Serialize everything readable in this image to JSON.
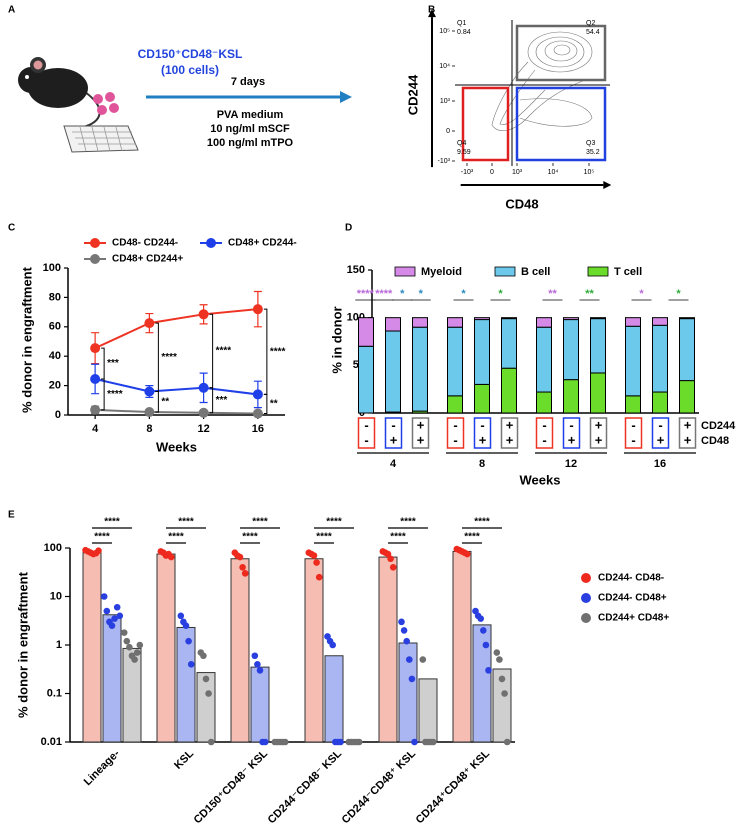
{
  "panel_labels": [
    "A",
    "B",
    "C",
    "D",
    "E"
  ],
  "schematic": {
    "cells": "CD150⁺CD48⁻KSL",
    "cell_count": "(100 cells)",
    "duration": "7 days",
    "conditions": [
      "PVA medium",
      "10 ng/ml mSCF",
      "100 ng/ml mTPO"
    ]
  },
  "chart_data": [
    {
      "type": "flow",
      "x_label": "CD48",
      "y_label": "CD244",
      "xlim": [
        -1500,
        250000
      ],
      "ylim": [
        -1500,
        250000
      ],
      "xticks": [
        {
          "value": -1000,
          "label": "-10³"
        },
        0,
        {
          "value": 1000,
          "label": "10³"
        },
        {
          "value": 10000,
          "label": "10⁴"
        },
        {
          "value": 100000,
          "label": "10⁵"
        }
      ],
      "yticks": [
        {
          "value": -1000,
          "label": "-10³"
        },
        0,
        {
          "value": 1000,
          "label": "10³"
        },
        {
          "value": 10000,
          "label": "10⁴"
        },
        {
          "value": 100000,
          "label": "10⁵"
        }
      ],
      "quadrants": [
        {
          "name": "Q1",
          "value": 0.84
        },
        {
          "name": "Q2",
          "value": 54.4
        },
        {
          "name": "Q3",
          "value": 35.2
        },
        {
          "name": "Q4",
          "value": 9.59
        }
      ]
    },
    {
      "type": "line",
      "x_label": "Weeks",
      "y_label": "% donor in engraftment",
      "x": [
        4,
        8,
        12,
        16
      ],
      "xlim": [
        2,
        18
      ],
      "xticks": [
        4,
        8,
        12,
        16
      ],
      "ylim": [
        0,
        100
      ],
      "yticks": [
        0,
        20,
        40,
        60,
        80,
        100
      ],
      "series": [
        {
          "name": "CD48- CD244-",
          "color": "#ee3322",
          "values": [
            45.5,
            62.5,
            68.5,
            72
          ],
          "error": [
            10.5,
            6.5,
            6.5,
            12
          ]
        },
        {
          "name": "CD48+ CD244-",
          "color": "#1f3fe8",
          "values": [
            24.5,
            16,
            18.5,
            14
          ],
          "error": [
            10,
            4,
            10,
            9
          ]
        },
        {
          "name": "CD48+ CD244+",
          "color": "#777777",
          "values": [
            3.5,
            2,
            1.5,
            1
          ],
          "error": [
            2.5,
            1,
            1,
            1
          ]
        }
      ],
      "significance_upper": [
        "***",
        "****",
        "****",
        "****"
      ],
      "significance_lower": [
        "****",
        "**",
        "***",
        "**"
      ]
    },
    {
      "type": "stacked_bar",
      "x_label": "Weeks",
      "y_label": "% in donor",
      "groups": [
        "4",
        "8",
        "12",
        "16"
      ],
      "ylim": [
        0,
        150
      ],
      "yticks": [
        0,
        50,
        100,
        150
      ],
      "series": [
        {
          "name": "Myeloid",
          "color": "#d58ae8",
          "values": [
            30,
            14,
            10,
            10,
            2,
            1,
            10,
            2,
            1,
            9,
            8,
            1
          ]
        },
        {
          "name": "B cell",
          "color": "#6cc9ec",
          "values": [
            70,
            85,
            88,
            72,
            68,
            52,
            68,
            63,
            57,
            73,
            70,
            65
          ]
        },
        {
          "name": "T cell",
          "color": "#6bdc2a",
          "values": [
            0,
            1,
            2,
            18,
            30,
            47,
            22,
            35,
            42,
            18,
            22,
            34
          ]
        }
      ],
      "sign_rows": [
        {
          "label": "CD244",
          "signs": [
            "-",
            "-",
            "+"
          ]
        },
        {
          "label": "CD48",
          "signs": [
            "-",
            "+",
            "+"
          ]
        }
      ],
      "condition_colors": [
        "#ee3322",
        "#1f3fe8",
        "#777777"
      ],
      "significance": [
        [
          {
            "text": "****",
            "color": "#b86ad8"
          },
          {
            "text": "****",
            "color": "#b86ad8"
          },
          {
            "text": "*",
            "color": "#2a8cc0"
          },
          {
            "text": "*",
            "color": "#2a8cc0"
          }
        ],
        [
          {
            "text": "*",
            "color": "#2a8cc0"
          },
          {
            "text": "*",
            "color": "#2faa3a"
          }
        ],
        [
          {
            "text": "**",
            "color": "#b86ad8"
          },
          {
            "text": "**",
            "color": "#2faa3a"
          }
        ],
        [
          {
            "text": "*",
            "color": "#b86ad8"
          },
          {
            "text": "*",
            "color": "#2faa3a"
          }
        ]
      ]
    },
    {
      "type": "bar",
      "y_label": "% donor in engraftment",
      "log_scale": true,
      "categories": [
        "Lineage-",
        "KSL",
        "CD150⁺CD48⁻ KSL",
        "CD244⁻CD48⁻ KSL",
        "CD244⁻CD48⁺ KSL",
        "CD244⁺CD48⁺ KSL"
      ],
      "ylim": [
        0.01,
        100
      ],
      "yticks": [
        0.01,
        0.1,
        1,
        10,
        100
      ],
      "series": [
        {
          "name": "CD244- CD48-",
          "color": "#ee2a1e",
          "bar_color": "#f6bdb3",
          "values": [
            80,
            75,
            60,
            60,
            65,
            85
          ],
          "points": [
            [
              90,
              85,
              80,
              75,
              78,
              88
            ],
            [
              85,
              80,
              70,
              75,
              65
            ],
            [
              80,
              70,
              65,
              40,
              30
            ],
            [
              80,
              75,
              70,
              50,
              25
            ],
            [
              85,
              80,
              75,
              60,
              40
            ],
            [
              95,
              90,
              85,
              80,
              75
            ]
          ]
        },
        {
          "name": "CD244- CD48+",
          "color": "#2a3fe0",
          "bar_color": "#aab6f2",
          "values": [
            4.2,
            2.3,
            0.35,
            0.6,
            1.1,
            2.6
          ],
          "points": [
            [
              10,
              5,
              3,
              2.5,
              3.5,
              6,
              4
            ],
            [
              4,
              3,
              2.5,
              1.2,
              0.4
            ],
            [
              0.6,
              0.4,
              0.3,
              0.01,
              0.01
            ],
            [
              1.5,
              1.2,
              1,
              0.01,
              0.01,
              0.01
            ],
            [
              3,
              2,
              1.2,
              0.5,
              0.2,
              0.01
            ],
            [
              5,
              4,
              3.5,
              2,
              1,
              0.3
            ]
          ]
        },
        {
          "name": "CD244+ CD48+",
          "color": "#707070",
          "bar_color": "#cfcfcf",
          "values": [
            0.85,
            0.27,
            0.01,
            0.01,
            0.2,
            0.32
          ],
          "points": [
            [
              1.8,
              1.2,
              0.9,
              0.6,
              0.5,
              0.7,
              1
            ],
            [
              0.7,
              0.6,
              0.2,
              0.1,
              0.01
            ],
            [
              0.01,
              0.01,
              0.01,
              0.01,
              0.01
            ],
            [
              0.01,
              0.01,
              0.01,
              0.01,
              0.01
            ],
            [
              0.5,
              0.01,
              0.01,
              0.01,
              0.01
            ],
            [
              0.7,
              0.5,
              0.2,
              0.1,
              0.01
            ]
          ]
        }
      ],
      "significance": [
        [
          "****",
          "****"
        ],
        [
          "****",
          "****"
        ],
        [
          "****",
          "****"
        ],
        [
          "****",
          "****"
        ],
        [
          "****",
          "****"
        ],
        [
          "****",
          "****"
        ]
      ]
    }
  ]
}
